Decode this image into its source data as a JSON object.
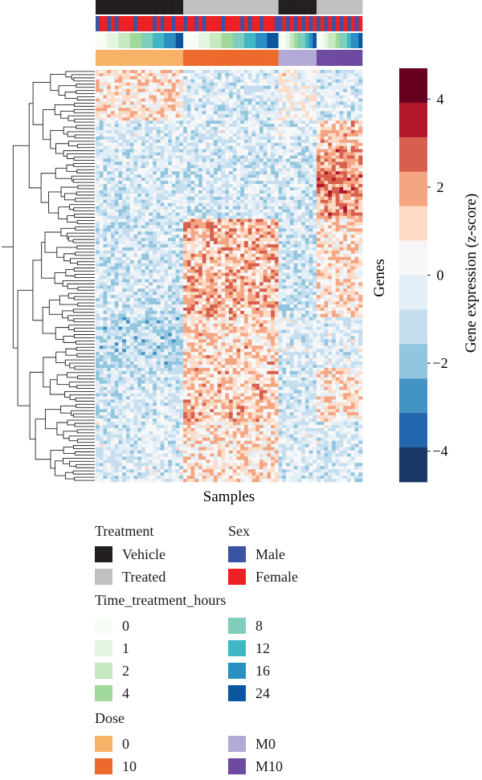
{
  "chart_data": {
    "type": "heatmap",
    "xlabel": "Samples",
    "ylabel": "Genes",
    "colorbar": {
      "label": "Gene expression (z-score)",
      "range": [
        -4.7,
        4.7
      ],
      "ticks": [
        "4",
        "2",
        "0",
        "−2",
        "−4"
      ],
      "tick_values": [
        4,
        2,
        0,
        -2,
        -4
      ],
      "colors": [
        "#67001f",
        "#b2182b",
        "#d6604d",
        "#f4a582",
        "#fddbc7",
        "#f7f7f7",
        "#e3eef6",
        "#c4def0",
        "#92c5de",
        "#4393c3",
        "#2166ac",
        "#1a3768"
      ]
    },
    "n_samples": 70,
    "n_genes": 130,
    "annotation_tracks": [
      "Treatment",
      "Sex",
      "Time_treatment_hours",
      "Dose"
    ],
    "sample_groups": [
      {
        "dose": "0",
        "treatment": "Vehicle",
        "count": 23
      },
      {
        "dose": "10",
        "treatment": "Treated",
        "count": 25
      },
      {
        "dose": "M0",
        "treatment": "Vehicle",
        "count": 10
      },
      {
        "dose": "M10",
        "treatment": "Treated",
        "count": 12
      }
    ],
    "dendrogram": "rows",
    "legend_placement": "bottom"
  },
  "legend": {
    "treatment": {
      "title": "Treatment",
      "items": [
        {
          "label": "Vehicle",
          "color": "#231f20"
        },
        {
          "label": "Treated",
          "color": "#c0c0c0"
        }
      ]
    },
    "sex": {
      "title": "Sex",
      "items": [
        {
          "label": "Male",
          "color": "#3a53a4"
        },
        {
          "label": "Female",
          "color": "#ed2024"
        }
      ]
    },
    "time": {
      "title": "Time_treatment_hours",
      "items": [
        {
          "label": "0",
          "color": "#f7fcf5"
        },
        {
          "label": "1",
          "color": "#e5f5e0"
        },
        {
          "label": "2",
          "color": "#c7e9c0"
        },
        {
          "label": "4",
          "color": "#a1d99b"
        },
        {
          "label": "8",
          "color": "#7fcdbb"
        },
        {
          "label": "12",
          "color": "#41b6c4"
        },
        {
          "label": "16",
          "color": "#2c8fc4"
        },
        {
          "label": "24",
          "color": "#0c56a0"
        }
      ]
    },
    "dose": {
      "title": "Dose",
      "items": [
        {
          "label": "0",
          "color": "#f7b267"
        },
        {
          "label": "10",
          "color": "#ec6a2c"
        },
        {
          "label": "M0",
          "color": "#b3a9d6"
        },
        {
          "label": "M10",
          "color": "#6e4aa0"
        }
      ]
    }
  }
}
